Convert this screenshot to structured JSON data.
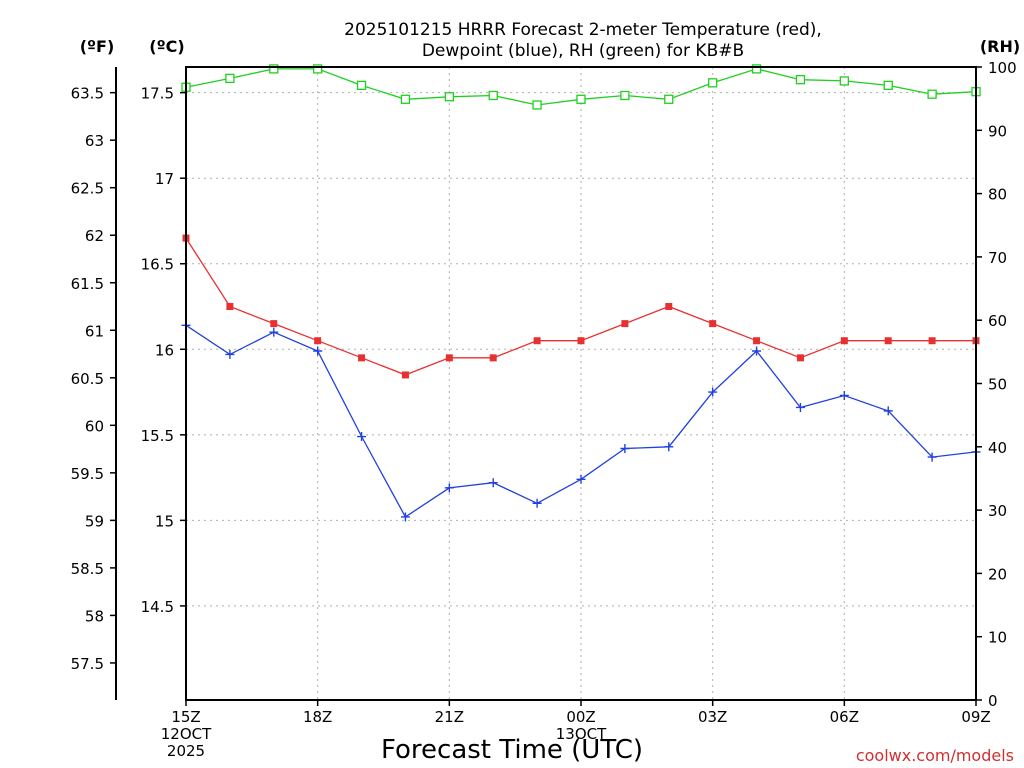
{
  "chart_data": {
    "type": "line",
    "title_lines": [
      "2025101215 HRRR Forecast 2-meter Temperature (red),",
      "Dewpoint (blue), RH (green) for KB#B"
    ],
    "xlabel": "Forecast Time (UTC)",
    "credit": "coolwx.com/models",
    "units": {
      "fahrenheit": "(ºF)",
      "celsius": "(ºC)",
      "rh": "(RH)"
    },
    "x": [
      0,
      1,
      2,
      3,
      4,
      5,
      6,
      7,
      8,
      9,
      10,
      11,
      12,
      13,
      14,
      15,
      16,
      17,
      18
    ],
    "x_ticks": [
      {
        "x": 0,
        "lines": [
          "15Z",
          "12OCT",
          "2025"
        ]
      },
      {
        "x": 3,
        "lines": [
          "18Z"
        ]
      },
      {
        "x": 6,
        "lines": [
          "21Z"
        ]
      },
      {
        "x": 9,
        "lines": [
          "00Z",
          "13OCT"
        ]
      },
      {
        "x": 12,
        "lines": [
          "03Z"
        ]
      },
      {
        "x": 15,
        "lines": [
          "06Z"
        ]
      },
      {
        "x": 18,
        "lines": [
          "09Z"
        ]
      }
    ],
    "celsius_axis": {
      "range": [
        13.95,
        17.65
      ],
      "ticks": [
        14.5,
        15,
        15.5,
        16,
        16.5,
        17,
        17.5
      ],
      "tick_labels": [
        "14.5",
        "15",
        "15.5",
        "16",
        "16.5",
        "17",
        "17.5"
      ]
    },
    "fahrenheit_axis": {
      "range": [
        57.11,
        63.77
      ],
      "ticks": [
        57.5,
        58,
        58.5,
        59,
        59.5,
        60,
        60.5,
        61,
        61.5,
        62,
        62.5,
        63,
        63.5
      ],
      "tick_labels": [
        "57.5",
        "58",
        "58.5",
        "59",
        "59.5",
        "60",
        "60.5",
        "61",
        "61.5",
        "62",
        "62.5",
        "63",
        "63.5"
      ]
    },
    "rh_axis": {
      "range": [
        0,
        100
      ],
      "ticks": [
        0,
        10,
        20,
        30,
        40,
        50,
        60,
        70,
        80,
        90,
        100
      ],
      "tick_labels": [
        "0",
        "10",
        "20",
        "30",
        "40",
        "50",
        "60",
        "70",
        "80",
        "90",
        "100"
      ]
    },
    "series": [
      {
        "name": "Temperature",
        "axis": "celsius",
        "color": "#e83030",
        "marker": "filled-square",
        "values": [
          16.65,
          16.25,
          16.15,
          16.05,
          15.95,
          15.85,
          15.95,
          15.95,
          16.05,
          16.05,
          16.15,
          16.25,
          16.15,
          16.05,
          15.95,
          16.05,
          16.05,
          16.05,
          16.05
        ]
      },
      {
        "name": "Dewpoint",
        "axis": "celsius",
        "color": "#2040e0",
        "marker": "plus",
        "values": [
          16.14,
          15.97,
          16.1,
          15.99,
          15.49,
          15.02,
          15.19,
          15.22,
          15.1,
          15.24,
          15.42,
          15.43,
          15.75,
          15.99,
          15.66,
          15.73,
          15.64,
          15.37,
          15.4
        ]
      },
      {
        "name": "RH",
        "axis": "rh",
        "color": "#20d020",
        "marker": "open-square",
        "values": [
          96.8,
          98.2,
          99.7,
          99.7,
          97.1,
          94.9,
          95.3,
          95.5,
          94.0,
          94.9,
          95.5,
          94.9,
          97.5,
          99.7,
          98.0,
          97.8,
          97.1,
          95.7,
          96.1
        ]
      }
    ]
  }
}
